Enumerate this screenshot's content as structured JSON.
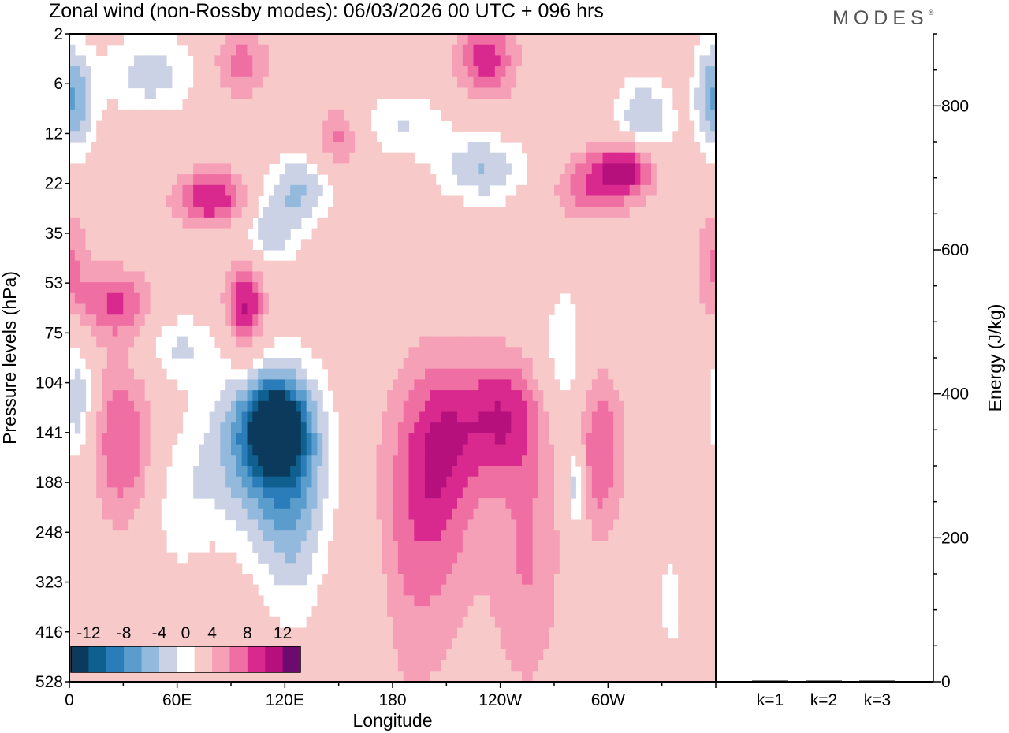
{
  "chart_data": [
    {
      "type": "heatmap",
      "title": "Zonal wind (non-Rossby modes):  06/03/2026  00 UTC  + 096 hrs",
      "brand": "MODES",
      "brand_mark": "®",
      "xlabel": "Longitude",
      "ylabel": "Pressure levels (hPa)",
      "x_ticks": [
        {
          "label": "0",
          "lon": 0
        },
        {
          "label": "60E",
          "lon": 60
        },
        {
          "label": "120E",
          "lon": 120
        },
        {
          "label": "180",
          "lon": 180
        },
        {
          "label": "120W",
          "lon": 240
        },
        {
          "label": "60W",
          "lon": 300
        }
      ],
      "xlim": [
        0,
        360
      ],
      "y_levels": [
        "2",
        "6",
        "12",
        "22",
        "35",
        "53",
        "75",
        "104",
        "141",
        "188",
        "248",
        "323",
        "416",
        "528"
      ],
      "colorbar": {
        "labels": [
          "-12",
          "-8",
          "-4",
          "0",
          "4",
          "8",
          "12"
        ],
        "levels": [
          -14,
          -12,
          -10,
          -8,
          -6,
          -4,
          -2,
          2,
          4,
          6,
          8,
          10,
          12,
          14
        ],
        "colors": [
          "#0b3a5c",
          "#0f5f8f",
          "#2a7db8",
          "#5a9dcc",
          "#93b9dc",
          "#ccd2e6",
          "#ffffff",
          "#f8c9c9",
          "#f6a0b8",
          "#ef6fa3",
          "#d9288e",
          "#b5107c",
          "#6d0a6e"
        ]
      },
      "features": [
        {
          "lon": 115,
          "level": 7.9,
          "value": -13,
          "spread_lon": 11,
          "spread_lev": 0.6
        },
        {
          "lon": 108,
          "level": 8.3,
          "value": -9,
          "spread_lon": 24,
          "spread_lev": 1.3
        },
        {
          "lon": 125,
          "level": 9.8,
          "value": -5,
          "spread_lon": 14,
          "spread_lev": 1.6
        },
        {
          "lon": 5,
          "level": 7.4,
          "value": -6,
          "spread_lon": 6,
          "spread_lev": 0.9
        },
        {
          "lon": 282,
          "level": 9.1,
          "value": -7,
          "spread_lon": 4,
          "spread_lev": 0.7
        },
        {
          "lon": 98,
          "level": 5.5,
          "value": 9,
          "spread_lon": 8,
          "spread_lev": 0.7
        },
        {
          "lon": 80,
          "level": 3.3,
          "value": 8,
          "spread_lon": 15,
          "spread_lev": 0.4
        },
        {
          "lon": 310,
          "level": 2.7,
          "value": 9,
          "spread_lon": 12,
          "spread_lev": 0.4
        },
        {
          "lon": 240,
          "level": 7.7,
          "value": 7,
          "spread_lon": 18,
          "spread_lev": 0.9
        },
        {
          "lon": 205,
          "level": 8.4,
          "value": 6,
          "spread_lon": 15,
          "spread_lev": 1.4
        },
        {
          "lon": 30,
          "level": 8.2,
          "value": 6,
          "spread_lon": 13,
          "spread_lev": 1.2
        },
        {
          "lon": 295,
          "level": 8.4,
          "value": 6,
          "spread_lon": 10,
          "spread_lev": 1.2
        },
        {
          "lon": 25,
          "level": 5.4,
          "value": 6,
          "spread_lon": 15,
          "spread_lev": 0.5
        },
        {
          "lon": 232,
          "level": 0.5,
          "value": 7,
          "spread_lon": 12,
          "spread_lev": 0.6
        },
        {
          "lon": 150,
          "level": 2.1,
          "value": 5,
          "spread_lon": 9,
          "spread_lev": 0.5
        },
        {
          "lon": 290,
          "level": 3.1,
          "value": 5,
          "spread_lon": 15,
          "spread_lev": 0.5
        },
        {
          "lon": 190,
          "level": 10.5,
          "value": 4,
          "spread_lon": 25,
          "spread_lev": 2.2
        },
        {
          "lon": 255,
          "level": 10.5,
          "value": 4,
          "spread_lon": 14,
          "spread_lev": 2
        },
        {
          "lon": 95,
          "level": 0.6,
          "value": 5,
          "spread_lon": 12,
          "spread_lev": 0.5
        },
        {
          "lon": 360,
          "level": 4.5,
          "value": 4,
          "spread_lon": 8,
          "spread_lev": 0.8
        },
        {
          "lon": 128,
          "level": 3.1,
          "value": -6,
          "spread_lon": 14,
          "spread_lev": 0.5
        },
        {
          "lon": 110,
          "level": 4,
          "value": -5,
          "spread_lon": 13,
          "spread_lev": 0.5
        },
        {
          "lon": 230,
          "level": 2.7,
          "value": -6,
          "spread_lon": 18,
          "spread_lev": 0.5
        },
        {
          "lon": 320,
          "level": 1.7,
          "value": -6,
          "spread_lon": 12,
          "spread_lev": 0.6
        },
        {
          "lon": 45,
          "level": 0.8,
          "value": -5,
          "spread_lon": 20,
          "spread_lev": 0.6
        },
        {
          "lon": 5,
          "level": 1.4,
          "value": -6,
          "spread_lon": 7,
          "spread_lev": 0.8
        },
        {
          "lon": 355,
          "level": 1.2,
          "value": -5,
          "spread_lon": 6,
          "spread_lev": 0.8
        },
        {
          "lon": 275,
          "level": 6.6,
          "value": -4,
          "spread_lon": 10,
          "spread_lev": 1.2
        },
        {
          "lon": 185,
          "level": 1.8,
          "value": -4,
          "spread_lon": 18,
          "spread_lev": 0.5
        },
        {
          "lon": 60,
          "level": 6.3,
          "value": -4,
          "spread_lon": 14,
          "spread_lev": 0.5
        },
        {
          "lon": 165,
          "level": 11.5,
          "value": -3,
          "spread_lon": 10,
          "spread_lev": 1.5
        },
        {
          "lon": 60,
          "level": 9.5,
          "value": -3,
          "spread_lon": 12,
          "spread_lev": 1
        },
        {
          "lon": 335,
          "level": 11.4,
          "value": -3,
          "spread_lon": 6,
          "spread_lev": 0.8
        }
      ]
    },
    {
      "type": "bar",
      "categories": [
        "k=1",
        "k=2",
        "k=3"
      ],
      "values": [
        1.5,
        1.2,
        1.0
      ],
      "ylabel": "Energy (J/kg)",
      "ylim": [
        0,
        900
      ],
      "y_ticks": [
        "0",
        "200",
        "400",
        "600",
        "800"
      ],
      "y_tick_values": [
        0,
        200,
        400,
        600,
        800
      ],
      "minor_tick_step": 50
    }
  ]
}
